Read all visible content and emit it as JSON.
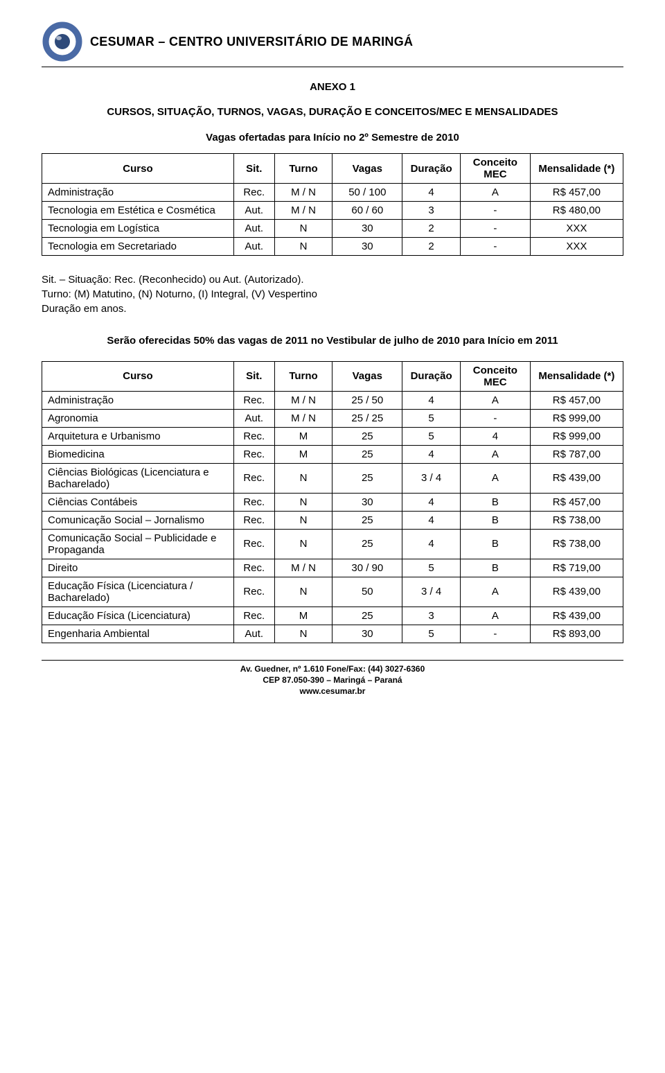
{
  "header": {
    "institution": "CESUMAR – CENTRO UNIVERSITÁRIO DE MARINGÁ"
  },
  "anexo_title": "ANEXO 1",
  "section1_title": "CURSOS, SITUAÇÃO, TURNOS, VAGAS, DURAÇÃO E CONCEITOS/MEC E MENSALIDADES",
  "section1_subtitle": "Vagas ofertadas para Início no 2º Semestre de 2010",
  "columns": {
    "curso": "Curso",
    "sit": "Sit.",
    "turno": "Turno",
    "vagas": "Vagas",
    "duracao": "Duração",
    "conceito": "Conceito MEC",
    "mensalidade": "Mensalidade (*)"
  },
  "table1_rows": [
    {
      "curso": "Administração",
      "sit": "Rec.",
      "turno": "M / N",
      "vagas": "50 / 100",
      "duracao": "4",
      "conceito": "A",
      "mensalidade": "R$ 457,00"
    },
    {
      "curso": "Tecnologia em Estética e Cosmética",
      "sit": "Aut.",
      "turno": "M / N",
      "vagas": "60 / 60",
      "duracao": "3",
      "conceito": "-",
      "mensalidade": "R$ 480,00"
    },
    {
      "curso": "Tecnologia em Logística",
      "sit": "Aut.",
      "turno": "N",
      "vagas": "30",
      "duracao": "2",
      "conceito": "-",
      "mensalidade": "XXX"
    },
    {
      "curso": "Tecnologia em Secretariado",
      "sit": "Aut.",
      "turno": "N",
      "vagas": "30",
      "duracao": "2",
      "conceito": "-",
      "mensalidade": "XXX"
    }
  ],
  "notes": {
    "line1": "Sit. – Situação: Rec. (Reconhecido) ou Aut. (Autorizado).",
    "line2": "Turno: (M) Matutino, (N) Noturno, (I) Integral, (V) Vespertino",
    "line3": "Duração em anos."
  },
  "section2_title": "Serão oferecidas 50% das vagas de 2011 no Vestibular de julho de 2010 para Início em 2011",
  "table2_rows": [
    {
      "curso": "Administração",
      "sit": "Rec.",
      "turno": "M / N",
      "vagas": "25 / 50",
      "duracao": "4",
      "conceito": "A",
      "mensalidade": "R$ 457,00"
    },
    {
      "curso": "Agronomia",
      "sit": "Aut.",
      "turno": "M / N",
      "vagas": "25 / 25",
      "duracao": "5",
      "conceito": "-",
      "mensalidade": "R$ 999,00"
    },
    {
      "curso": "Arquitetura e Urbanismo",
      "sit": "Rec.",
      "turno": "M",
      "vagas": "25",
      "duracao": "5",
      "conceito": "4",
      "mensalidade": "R$ 999,00"
    },
    {
      "curso": "Biomedicina",
      "sit": "Rec.",
      "turno": "M",
      "vagas": "25",
      "duracao": "4",
      "conceito": "A",
      "mensalidade": "R$ 787,00"
    },
    {
      "curso": "Ciências Biológicas (Licenciatura e Bacharelado)",
      "sit": "Rec.",
      "turno": "N",
      "vagas": "25",
      "duracao": "3 / 4",
      "conceito": "A",
      "mensalidade": "R$ 439,00"
    },
    {
      "curso": "Ciências Contábeis",
      "sit": "Rec.",
      "turno": "N",
      "vagas": "30",
      "duracao": "4",
      "conceito": "B",
      "mensalidade": "R$ 457,00"
    },
    {
      "curso": "Comunicação Social – Jornalismo",
      "sit": "Rec.",
      "turno": "N",
      "vagas": "25",
      "duracao": "4",
      "conceito": "B",
      "mensalidade": "R$ 738,00"
    },
    {
      "curso": "Comunicação Social – Publicidade e Propaganda",
      "sit": "Rec.",
      "turno": "N",
      "vagas": "25",
      "duracao": "4",
      "conceito": "B",
      "mensalidade": "R$ 738,00"
    },
    {
      "curso": "Direito",
      "sit": "Rec.",
      "turno": "M / N",
      "vagas": "30 / 90",
      "duracao": "5",
      "conceito": "B",
      "mensalidade": "R$ 719,00"
    },
    {
      "curso": "Educação Física (Licenciatura / Bacharelado)",
      "sit": "Rec.",
      "turno": "N",
      "vagas": "50",
      "duracao": "3 / 4",
      "conceito": "A",
      "mensalidade": "R$ 439,00"
    },
    {
      "curso": "Educação Física (Licenciatura)",
      "sit": "Rec.",
      "turno": "M",
      "vagas": "25",
      "duracao": "3",
      "conceito": "A",
      "mensalidade": "R$ 439,00"
    },
    {
      "curso": "Engenharia Ambiental",
      "sit": "Aut.",
      "turno": "N",
      "vagas": "30",
      "duracao": "5",
      "conceito": "-",
      "mensalidade": "R$ 893,00"
    }
  ],
  "footer": {
    "line1": "Av. Guedner, nº 1.610 Fone/Fax: (44) 3027-6360",
    "line2": "CEP 87.050-390 – Maringá – Paraná",
    "line3": "www.cesumar.br"
  },
  "style": {
    "col_widths": {
      "curso": "33%",
      "sit": "7%",
      "turno": "10%",
      "vagas": "12%",
      "duracao": "10%",
      "conceito": "12%",
      "mensalidade": "16%"
    },
    "font_size_body": 15,
    "font_size_footer": 12,
    "border_color": "#000000",
    "background_color": "#ffffff",
    "text_color": "#000000",
    "logo_colors": {
      "outer": "#4a6aa5",
      "inner": "#2e4a7a",
      "shadow": "#5a5a5a"
    }
  }
}
